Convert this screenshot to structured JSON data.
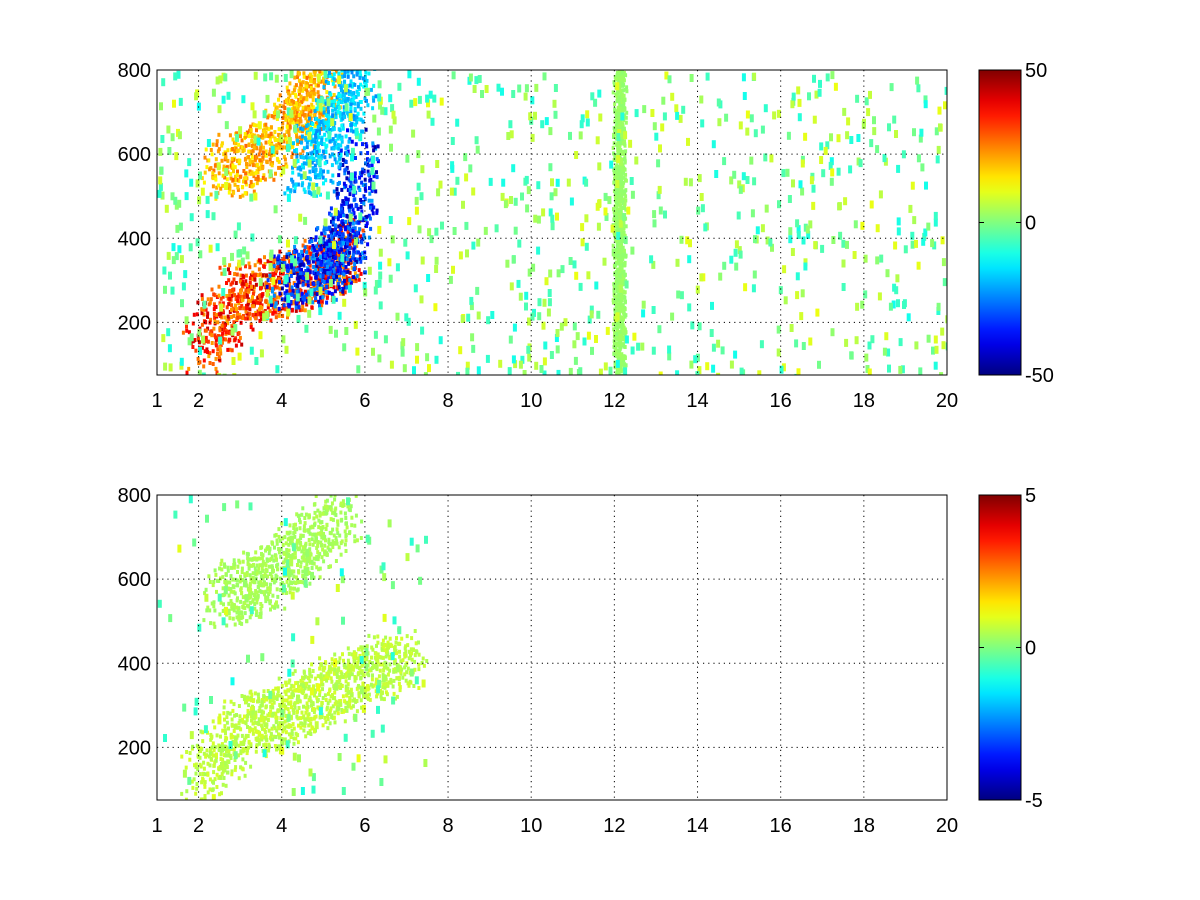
{
  "chart_data": [
    {
      "type": "heatmap",
      "title": "",
      "xlabel": "",
      "ylabel": "",
      "xlim": [
        1,
        20
      ],
      "ylim": [
        75,
        800
      ],
      "x_ticks": [
        1,
        2,
        4,
        6,
        8,
        10,
        12,
        14,
        16,
        18,
        20
      ],
      "y_ticks": [
        200,
        400,
        600,
        800
      ],
      "grid": true,
      "colormap": "jet",
      "colorbar": {
        "range": [
          -50,
          50
        ],
        "ticks": [
          50,
          0,
          -50
        ]
      },
      "features": [
        {
          "label": "positive band",
          "x": [
            2.0,
            3.0,
            4.0,
            5.0,
            5.5
          ],
          "y": [
            140,
            270,
            290,
            330,
            380
          ],
          "value": 40
        },
        {
          "label": "negative band",
          "x": [
            4.0,
            5.0,
            5.6,
            5.9
          ],
          "y": [
            300,
            330,
            400,
            600
          ],
          "value": -42
        },
        {
          "label": "upper positive band",
          "x": [
            2.5,
            3.5,
            4.5,
            5.0
          ],
          "y": [
            560,
            610,
            700,
            790
          ],
          "value": 25
        },
        {
          "label": "upper negative band",
          "x": [
            4.5,
            5.2,
            5.8
          ],
          "y": [
            560,
            680,
            790
          ],
          "value": -22
        },
        {
          "label": "stripe",
          "x": [
            12.0,
            12.2
          ],
          "y": [
            75,
            800
          ],
          "value": 3
        }
      ]
    },
    {
      "type": "heatmap",
      "title": "",
      "xlabel": "",
      "ylabel": "",
      "xlim": [
        1,
        20
      ],
      "ylim": [
        75,
        800
      ],
      "x_ticks": [
        1,
        2,
        4,
        6,
        8,
        10,
        12,
        14,
        16,
        18,
        20
      ],
      "y_ticks": [
        200,
        400,
        600,
        800
      ],
      "grid": true,
      "colormap": "jet",
      "colorbar": {
        "range": [
          -5,
          5
        ],
        "ticks": [
          5,
          0,
          -5
        ]
      },
      "features": [
        {
          "label": "lower band",
          "x": [
            2.0,
            3.0,
            4.0,
            5.0,
            6.0,
            7.0
          ],
          "y": [
            120,
            250,
            280,
            330,
            380,
            420
          ],
          "value": 0.8
        },
        {
          "label": "upper band",
          "x": [
            2.5,
            3.5,
            4.5,
            5.5
          ],
          "y": [
            560,
            600,
            680,
            760
          ],
          "value": 0.5
        }
      ]
    }
  ]
}
